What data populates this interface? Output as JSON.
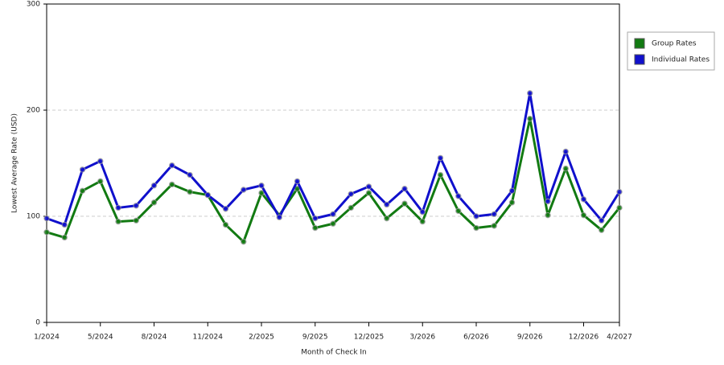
{
  "chart_data": {
    "type": "line",
    "x_label": "Month of Check In",
    "y_label": "Lowest Average Rate (USD)",
    "categories": [
      "1/2024",
      null,
      null,
      "5/2024",
      null,
      null,
      "8/2024",
      null,
      null,
      "11/2024",
      null,
      null,
      "2/2025",
      null,
      null,
      "9/2025",
      null,
      null,
      "12/2025",
      null,
      null,
      "3/2026",
      null,
      null,
      "6/2026",
      null,
      null,
      "9/2026",
      null,
      null,
      "12/2026",
      null,
      "4/2027"
    ],
    "series": [
      {
        "name": "Group Rates",
        "color": "#127a12",
        "values": [
          85,
          80,
          124,
          133,
          95,
          96,
          113,
          130,
          123,
          120,
          92,
          76,
          122,
          101,
          126,
          89,
          93,
          108,
          122,
          98,
          112,
          95,
          139,
          105,
          89,
          91,
          113,
          192,
          101,
          145,
          101,
          87,
          108
        ]
      },
      {
        "name": "Individual Rates",
        "color": "#1010cc",
        "values": [
          98,
          92,
          144,
          152,
          108,
          110,
          129,
          148,
          139,
          120,
          107,
          125,
          129,
          99,
          133,
          98,
          102,
          121,
          128,
          111,
          126,
          104,
          155,
          119,
          100,
          102,
          124,
          216,
          114,
          161,
          116,
          96,
          123
        ]
      }
    ],
    "ylim": [
      0,
      300
    ],
    "yticks": [
      0,
      100,
      200,
      300
    ],
    "grid": true,
    "legend": "top-right"
  }
}
